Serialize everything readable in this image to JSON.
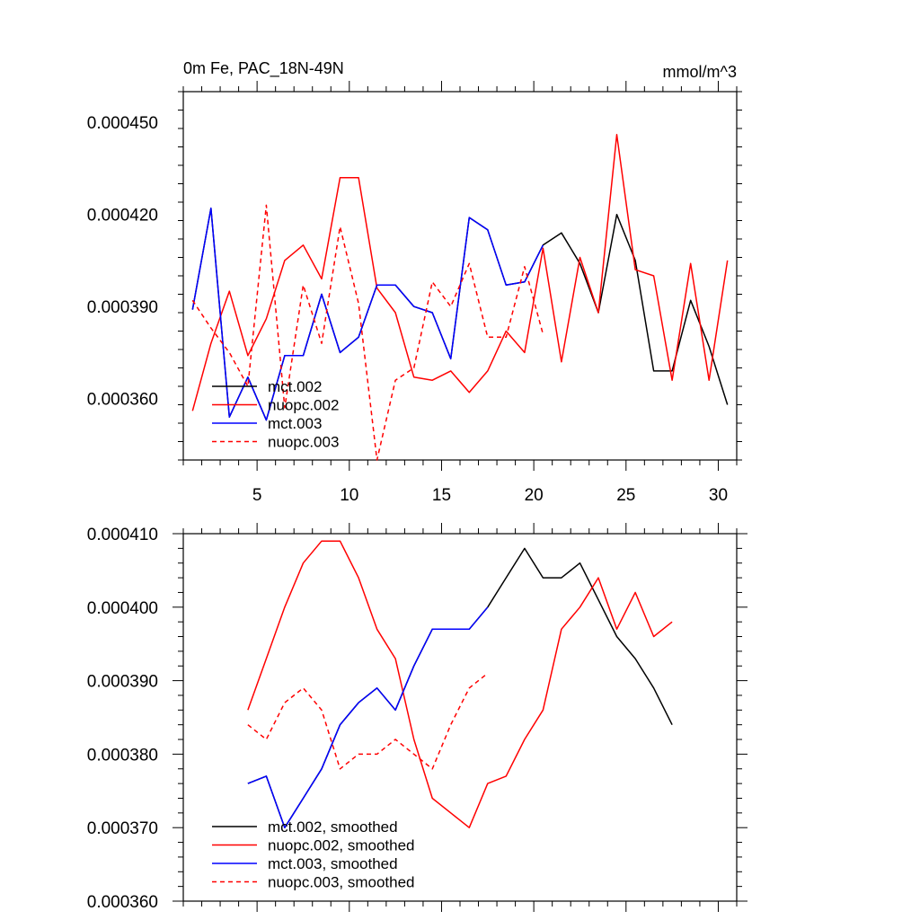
{
  "chart_data": [
    {
      "type": "line",
      "title_left": "0m Fe, PAC_18N-49N",
      "title_right": "mmol/m^3",
      "xlabel": "",
      "ylabel": "",
      "xlim": [
        1,
        31
      ],
      "ylim": [
        0.00034,
        0.00046
      ],
      "x_major_ticks": [
        5,
        10,
        15,
        20,
        25,
        30
      ],
      "x_tick_labels": [
        "5",
        "10",
        "15",
        "20",
        "25",
        "30"
      ],
      "y_major_ticks": [
        0.00036,
        0.00039,
        0.00042,
        0.00045
      ],
      "y_tick_labels": [
        "0.000360",
        "0.000390",
        "0.000420",
        "0.000450"
      ],
      "legend": [
        "mct.002",
        "nuopc.002",
        "mct.003",
        "nuopc.003"
      ],
      "legend_position": "bottom-left",
      "series": [
        {
          "name": "mct.002",
          "color": "#000000",
          "dash": "solid",
          "x": [
            1.5,
            2.5,
            3.5,
            4.5,
            5.5,
            6.5,
            7.5,
            8.5,
            9.5,
            10.5,
            11.5,
            12.5,
            13.5,
            14.5,
            15.5,
            16.5,
            17.5,
            18.5,
            19.5,
            20.5,
            21.5,
            22.5,
            23.5,
            24.5,
            25.5,
            26.5,
            27.5,
            28.5,
            29.5,
            30.5
          ],
          "values": [
            0.000389,
            0.000422,
            0.000354,
            0.000367,
            0.000353,
            0.000374,
            0.000374,
            0.000394,
            0.000375,
            0.00038,
            0.000397,
            0.000397,
            0.00039,
            0.000388,
            0.000373,
            0.000419,
            0.000415,
            0.000397,
            0.000398,
            0.00041,
            0.000414,
            0.000404,
            0.000388,
            0.00042,
            0.000405,
            0.000369,
            0.000369,
            0.000392,
            0.000377,
            0.000358
          ]
        },
        {
          "name": "nuopc.002",
          "color": "#ff0000",
          "dash": "solid",
          "x": [
            1.5,
            2.5,
            3.5,
            4.5,
            5.5,
            6.5,
            7.5,
            8.5,
            9.5,
            10.5,
            11.5,
            12.5,
            13.5,
            14.5,
            15.5,
            16.5,
            17.5,
            18.5,
            19.5,
            20.5,
            21.5,
            22.5,
            23.5,
            24.5,
            25.5,
            26.5,
            27.5,
            28.5,
            29.5,
            30.5
          ],
          "values": [
            0.000356,
            0.000378,
            0.000395,
            0.000374,
            0.000386,
            0.000405,
            0.00041,
            0.000399,
            0.000432,
            0.000432,
            0.000396,
            0.000388,
            0.000367,
            0.000366,
            0.000369,
            0.000362,
            0.000369,
            0.000382,
            0.000375,
            0.000409,
            0.000372,
            0.000406,
            0.000388,
            0.000446,
            0.000402,
            0.0004,
            0.000366,
            0.000404,
            0.000366,
            0.000405
          ]
        },
        {
          "name": "mct.003",
          "color": "#0000ff",
          "dash": "solid",
          "x": [
            1.5,
            2.5,
            3.5,
            4.5,
            5.5,
            6.5,
            7.5,
            8.5,
            9.5,
            10.5,
            11.5,
            12.5,
            13.5,
            14.5,
            15.5,
            16.5,
            17.5,
            18.5,
            19.5,
            20.5
          ],
          "values": [
            0.000389,
            0.000422,
            0.000354,
            0.000367,
            0.000353,
            0.000374,
            0.000374,
            0.000394,
            0.000375,
            0.00038,
            0.000397,
            0.000397,
            0.00039,
            0.000388,
            0.000373,
            0.000419,
            0.000415,
            0.000397,
            0.000398,
            0.00041
          ]
        },
        {
          "name": "nuopc.003",
          "color": "#ff0000",
          "dash": "dashed",
          "x": [
            1.5,
            2.5,
            3.5,
            4.5,
            5.5,
            6.5,
            7.5,
            8.5,
            9.5,
            10.5,
            11.5,
            12.5,
            13.5,
            14.5,
            15.5,
            16.5,
            17.5,
            18.5,
            19.5,
            20.5
          ],
          "values": [
            0.000392,
            0.000383,
            0.000375,
            0.000364,
            0.000423,
            0.000357,
            0.000397,
            0.000378,
            0.000416,
            0.000391,
            0.00034,
            0.000366,
            0.00037,
            0.000398,
            0.00039,
            0.000404,
            0.00038,
            0.00038,
            0.000403,
            0.000381
          ]
        }
      ]
    },
    {
      "type": "line",
      "title": "",
      "xlabel": "",
      "ylabel": "",
      "xlim": [
        1,
        31
      ],
      "ylim": [
        0.00036,
        0.00041
      ],
      "x_major_ticks": [
        5,
        10,
        15,
        20,
        25,
        30
      ],
      "x_tick_labels": [],
      "y_major_ticks": [
        0.00036,
        0.00037,
        0.00038,
        0.00039,
        0.0004,
        0.00041
      ],
      "y_tick_labels": [
        "0.000360",
        "0.000370",
        "0.000380",
        "0.000390",
        "0.000400",
        "0.000410"
      ],
      "legend": [
        "mct.002, smoothed",
        "nuopc.002, smoothed",
        "mct.003, smoothed",
        "nuopc.003, smoothed"
      ],
      "legend_position": "bottom-left",
      "series": [
        {
          "name": "mct.002, smoothed",
          "color": "#000000",
          "dash": "solid",
          "x": [
            4.5,
            5.5,
            6.5,
            7.5,
            8.5,
            9.5,
            10.5,
            11.5,
            12.5,
            13.5,
            14.5,
            15.5,
            16.5,
            17.5,
            18.5,
            19.5,
            20.5,
            21.5,
            22.5,
            23.5,
            24.5,
            25.5,
            26.5,
            27.5
          ],
          "values": [
            0.000376,
            0.000377,
            0.00037,
            0.000374,
            0.000378,
            0.000384,
            0.000387,
            0.000389,
            0.000386,
            0.000392,
            0.000397,
            0.000397,
            0.000397,
            0.0004,
            0.000404,
            0.000408,
            0.000404,
            0.000404,
            0.000406,
            0.000401,
            0.000396,
            0.000393,
            0.000389,
            0.000384
          ]
        },
        {
          "name": "nuopc.002, smoothed",
          "color": "#ff0000",
          "dash": "solid",
          "x": [
            4.5,
            5.5,
            6.5,
            7.5,
            8.5,
            9.5,
            10.5,
            11.5,
            12.5,
            13.5,
            14.5,
            15.5,
            16.5,
            17.5,
            18.5,
            19.5,
            20.5,
            21.5,
            22.5,
            23.5,
            24.5,
            25.5,
            26.5,
            27.5
          ],
          "values": [
            0.000386,
            0.000393,
            0.0004,
            0.000406,
            0.000409,
            0.000409,
            0.000404,
            0.000397,
            0.000393,
            0.000382,
            0.000374,
            0.000372,
            0.00037,
            0.000376,
            0.000377,
            0.000382,
            0.000386,
            0.000397,
            0.0004,
            0.000404,
            0.000397,
            0.000402,
            0.000396,
            0.000398
          ]
        },
        {
          "name": "mct.003, smoothed",
          "color": "#0000ff",
          "dash": "solid",
          "x": [
            4.5,
            5.5,
            6.5,
            7.5,
            8.5,
            9.5,
            10.5,
            11.5,
            12.5,
            13.5,
            14.5,
            15.5,
            16.5,
            17.5
          ],
          "values": [
            0.000376,
            0.000377,
            0.00037,
            0.000374,
            0.000378,
            0.000384,
            0.000387,
            0.000389,
            0.000386,
            0.000392,
            0.000397,
            0.000397,
            0.000397,
            0.0004
          ]
        },
        {
          "name": "nuopc.003, smoothed",
          "color": "#ff0000",
          "dash": "dashed",
          "x": [
            4.5,
            5.5,
            6.5,
            7.5,
            8.5,
            9.5,
            10.5,
            11.5,
            12.5,
            13.5,
            14.5,
            15.5,
            16.5,
            17.5
          ],
          "values": [
            0.000384,
            0.000382,
            0.000387,
            0.000389,
            0.000386,
            0.000378,
            0.00038,
            0.00038,
            0.000382,
            0.00038,
            0.000378,
            0.000384,
            0.000389,
            0.000391
          ]
        }
      ]
    }
  ]
}
